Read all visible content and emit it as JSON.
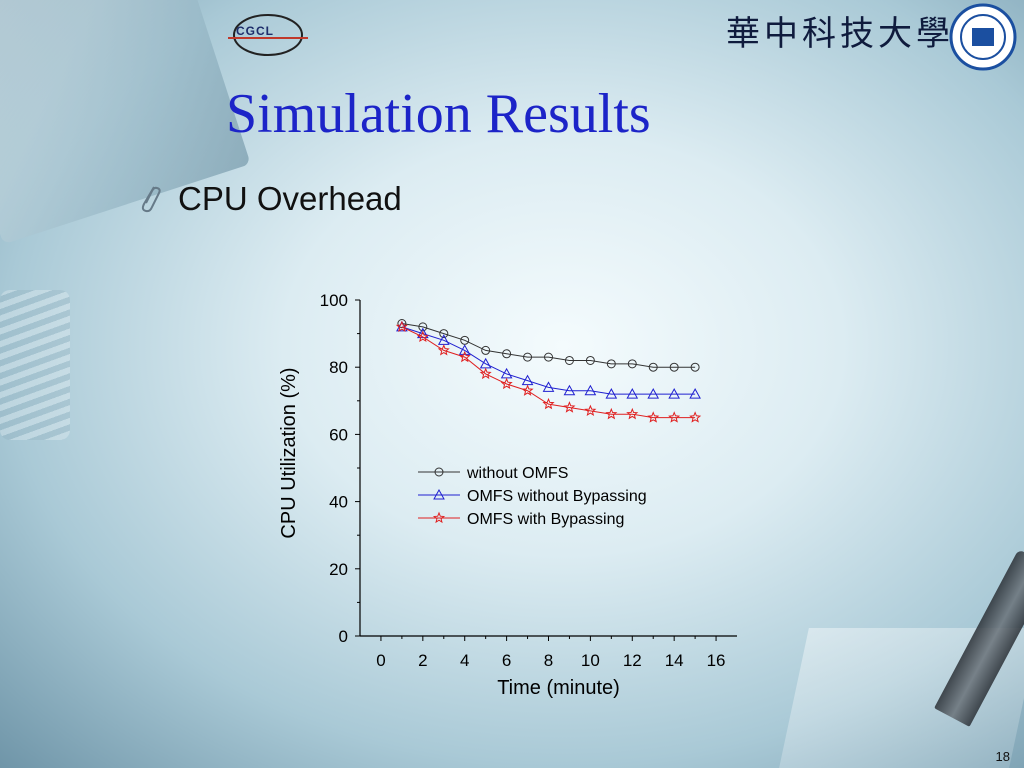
{
  "header": {
    "logo_text": "CGCL",
    "university_name": "華中科技大學",
    "seal_icon": "university-seal-icon"
  },
  "slide": {
    "title": "Simulation Results",
    "bullet_icon": "paperclip-icon",
    "subtitle": "CPU Overhead",
    "page_number": "18"
  },
  "colors": {
    "title": "#1c24c8",
    "without_omfs": "#333333",
    "omfs_without_bypassing": "#2020d0",
    "omfs_with_bypassing": "#e02020"
  },
  "chart_data": {
    "type": "line",
    "title": "",
    "xlabel": "Time (minute)",
    "ylabel": "CPU Utilization (%)",
    "xlim": [
      -1,
      17
    ],
    "ylim": [
      0,
      100
    ],
    "xticks": [
      0,
      2,
      4,
      6,
      8,
      10,
      12,
      14,
      16
    ],
    "yticks": [
      0,
      20,
      40,
      60,
      80,
      100
    ],
    "grid": false,
    "legend_position": "center-right",
    "x": [
      1,
      2,
      3,
      4,
      5,
      6,
      7,
      8,
      9,
      10,
      11,
      12,
      13,
      14,
      15
    ],
    "series": [
      {
        "name": "without OMFS",
        "marker": "circle",
        "values": [
          93,
          92,
          90,
          88,
          85,
          84,
          83,
          83,
          82,
          82,
          81,
          81,
          80,
          80,
          80
        ]
      },
      {
        "name": "OMFS without Bypassing",
        "marker": "triangle",
        "values": [
          92,
          90,
          88,
          85,
          81,
          78,
          76,
          74,
          73,
          73,
          72,
          72,
          72,
          72,
          72
        ]
      },
      {
        "name": "OMFS with Bypassing",
        "marker": "star",
        "values": [
          92,
          89,
          85,
          83,
          78,
          75,
          73,
          69,
          68,
          67,
          66,
          66,
          65,
          65,
          65
        ]
      }
    ]
  }
}
